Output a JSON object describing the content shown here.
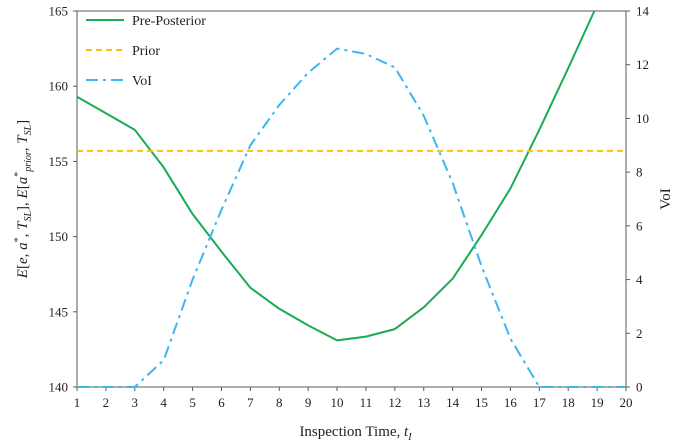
{
  "chart_data": {
    "type": "line",
    "x": [
      1,
      2,
      3,
      4,
      5,
      6,
      7,
      8,
      9,
      10,
      11,
      12,
      13,
      14,
      15,
      16,
      17,
      18,
      19,
      20
    ],
    "xlabel": "Inspection Time,",
    "xlabel_math": "t",
    "xlabel_sub": "I",
    "xlim": [
      1,
      20
    ],
    "ylim": [
      140,
      165
    ],
    "y2lim": [
      0,
      14
    ],
    "ylabel_parts": [
      {
        "text": "E",
        "style": "italic"
      },
      {
        "text": "[",
        "style": "normal"
      },
      {
        "text": "e",
        "style": "italic"
      },
      {
        "text": ", ",
        "style": "normal"
      },
      {
        "text": "a",
        "style": "italic"
      },
      {
        "text": "*",
        "style": "sup"
      },
      {
        "text": ", ",
        "style": "normal"
      },
      {
        "text": "T",
        "style": "italic"
      },
      {
        "text": "SL",
        "style": "sub"
      },
      {
        "text": "], ",
        "style": "normal"
      },
      {
        "text": "E",
        "style": "italic"
      },
      {
        "text": "[",
        "style": "normal"
      },
      {
        "text": "a",
        "style": "italic"
      },
      {
        "text": "*",
        "style": "sup"
      },
      {
        "text": "prior",
        "style": "sub"
      },
      {
        "text": ", ",
        "style": "normal"
      },
      {
        "text": "T",
        "style": "italic"
      },
      {
        "text": "SL",
        "style": "sub"
      },
      {
        "text": "]",
        "style": "normal"
      }
    ],
    "y2label": "VoI",
    "yticks": [
      140,
      145,
      150,
      155,
      160,
      165
    ],
    "y2ticks": [
      0,
      2,
      4,
      6,
      8,
      10,
      12,
      14
    ],
    "grid": false,
    "legend_position": "top-left",
    "series": [
      {
        "name": "Pre-Posterior",
        "axis": "left",
        "color": "#1aab55",
        "dash": "solid",
        "values": [
          159.3,
          158.2,
          157.1,
          154.6,
          151.5,
          149.0,
          146.6,
          145.2,
          144.1,
          143.1,
          143.35,
          143.85,
          145.3,
          147.2,
          150.1,
          153.2,
          157.1,
          161.2,
          165.4,
          null
        ]
      },
      {
        "name": "Prior",
        "axis": "left",
        "color": "#ffc000",
        "dash": "dashed",
        "values": [
          155.7,
          155.7,
          155.7,
          155.7,
          155.7,
          155.7,
          155.7,
          155.7,
          155.7,
          155.7,
          155.7,
          155.7,
          155.7,
          155.7,
          155.7,
          155.7,
          155.7,
          155.7,
          155.7,
          155.7
        ]
      },
      {
        "name": "VoI",
        "axis": "right",
        "color": "#3fb5f0",
        "dash": "dashdot",
        "values": [
          0,
          0,
          0,
          1.0,
          4.0,
          6.6,
          9.0,
          10.5,
          11.7,
          12.6,
          12.4,
          11.9,
          10.1,
          7.6,
          4.5,
          1.8,
          0,
          0,
          0,
          0
        ]
      }
    ]
  }
}
